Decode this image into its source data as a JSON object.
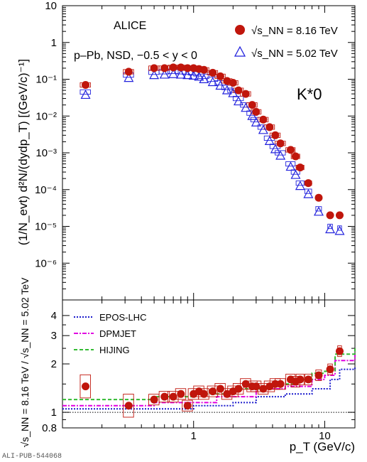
{
  "chart_data": [
    {
      "type": "scatter",
      "panel": "top",
      "title": "ALICE",
      "subtitle": "p–Pb, NSD, −0.5 < y < 0",
      "particle_label": "K*0",
      "ylabel": "(1/N_evt) d²N/(dydp_T) [(GeV/c)⁻¹]",
      "yscale": "log",
      "xscale": "log",
      "xlim": [
        0.1,
        17
      ],
      "ylim": [
        1e-07,
        10
      ],
      "yticks": [
        "10⁻⁶",
        "10⁻⁵",
        "10⁻⁴",
        "10⁻³",
        "10⁻²",
        "10⁻¹",
        "1",
        "10"
      ],
      "legend_position": "top-right",
      "series": [
        {
          "name": "√s_NN = 8.16 TeV",
          "marker": "filled-circle",
          "color": "#c0160c",
          "x": [
            0.15,
            0.32,
            0.5,
            0.6,
            0.7,
            0.8,
            0.9,
            1.0,
            1.1,
            1.2,
            1.4,
            1.6,
            1.8,
            2.0,
            2.2,
            2.5,
            2.8,
            3.0,
            3.4,
            3.8,
            4.2,
            4.6,
            5.5,
            6.0,
            6.5,
            7.5,
            9.0,
            11.0,
            13.0
          ],
          "y": [
            0.07,
            0.16,
            0.2,
            0.2,
            0.21,
            0.21,
            0.2,
            0.2,
            0.19,
            0.18,
            0.15,
            0.12,
            0.09,
            0.08,
            0.05,
            0.04,
            0.02,
            0.013,
            0.008,
            0.005,
            0.003,
            0.0018,
            0.0012,
            0.0008,
            0.0004,
            0.00015,
            6e-05,
            2e-05,
            2e-05
          ]
        },
        {
          "name": "√s_NN = 5.02 TeV",
          "marker": "open-triangle",
          "color": "#2222dd",
          "x": [
            0.15,
            0.32,
            0.5,
            0.6,
            0.7,
            0.8,
            0.9,
            1.0,
            1.1,
            1.2,
            1.4,
            1.6,
            1.8,
            2.0,
            2.2,
            2.5,
            2.8,
            3.0,
            3.4,
            3.8,
            4.2,
            4.6,
            5.5,
            6.0,
            6.5,
            7.5,
            9.0,
            11.0,
            13.0
          ],
          "y": [
            0.045,
            0.13,
            0.155,
            0.16,
            0.165,
            0.16,
            0.155,
            0.15,
            0.14,
            0.12,
            0.1,
            0.08,
            0.06,
            0.05,
            0.03,
            0.02,
            0.012,
            0.008,
            0.005,
            0.0025,
            0.0015,
            0.001,
            0.0005,
            0.0003,
            0.00015,
            9e-05,
            3e-05,
            1e-05,
            9e-06
          ]
        }
      ]
    },
    {
      "type": "scatter",
      "panel": "bottom",
      "xlabel": "p_T (GeV/c)",
      "ylabel": "√s_NN = 8.16 TeV / √s_NN = 5.02 TeV",
      "xscale": "log",
      "yscale": "log",
      "xlim": [
        0.1,
        17
      ],
      "ylim": [
        0.8,
        5
      ],
      "xticks": [
        "1",
        "10"
      ],
      "yticks": [
        "0.8",
        "1",
        "2",
        "3",
        "4"
      ],
      "reference_line": 1,
      "legend_position": "top-left",
      "series": [
        {
          "name": "ratio",
          "marker": "filled-circle",
          "color": "#c0160c",
          "x": [
            0.15,
            0.32,
            0.5,
            0.6,
            0.7,
            0.8,
            0.9,
            1.0,
            1.1,
            1.2,
            1.4,
            1.6,
            1.8,
            2.0,
            2.2,
            2.5,
            2.8,
            3.0,
            3.4,
            3.8,
            4.2,
            4.6,
            5.5,
            6.0,
            6.5,
            7.5,
            9.0,
            11.0,
            13.0
          ],
          "y": [
            1.45,
            1.1,
            1.2,
            1.25,
            1.25,
            1.3,
            1.1,
            1.3,
            1.35,
            1.3,
            1.35,
            1.4,
            1.3,
            1.35,
            1.4,
            1.5,
            1.45,
            1.45,
            1.4,
            1.45,
            1.5,
            1.5,
            1.6,
            1.55,
            1.6,
            1.6,
            1.7,
            1.85,
            2.4
          ]
        },
        {
          "name": "EPOS-LHC",
          "line": "dotted",
          "color": "#1a1acc",
          "x": [
            0.1,
            1.0,
            2.0,
            3.0,
            5.0,
            8.0,
            11.0,
            13.0,
            17.0
          ],
          "y": [
            1.05,
            1.1,
            1.15,
            1.25,
            1.3,
            1.4,
            1.6,
            1.85,
            1.9
          ]
        },
        {
          "name": "DPMJET",
          "line": "dash-dot",
          "color": "#e000e0",
          "x": [
            0.1,
            0.5,
            1.5,
            3.0,
            5.0,
            8.0,
            10.0,
            12.0,
            17.0
          ],
          "y": [
            1.1,
            1.15,
            1.25,
            1.4,
            1.45,
            1.6,
            1.7,
            2.1,
            2.3
          ]
        },
        {
          "name": "HIJING",
          "line": "dashed",
          "color": "#33bb33",
          "x": [
            0.1,
            0.5,
            1.0,
            2.0,
            4.0,
            6.0,
            8.0,
            10.0,
            12.0,
            17.0
          ],
          "y": [
            1.2,
            1.25,
            1.3,
            1.4,
            1.5,
            1.6,
            1.75,
            1.8,
            2.3,
            2.5
          ]
        }
      ]
    }
  ],
  "footer": {
    "pub_id": "ALI-PUB-544068"
  }
}
